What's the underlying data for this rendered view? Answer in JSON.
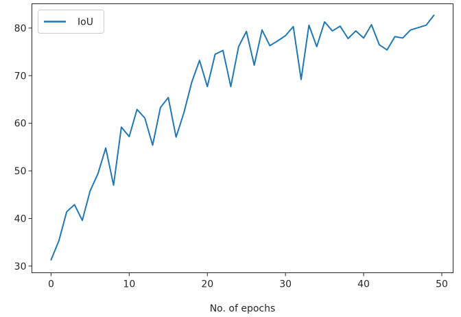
{
  "chart_data": {
    "type": "line",
    "title": "",
    "xlabel": "No. of epochs",
    "ylabel": "",
    "xlim": [
      -2.45,
      51.45
    ],
    "ylim": [
      28.6,
      85.1
    ],
    "xticks": [
      0,
      10,
      20,
      30,
      40,
      50
    ],
    "yticks": [
      30,
      40,
      50,
      60,
      70,
      80
    ],
    "grid": false,
    "legend_position": "upper-left",
    "series": [
      {
        "name": "IoU",
        "color": "#1f77b4",
        "x": [
          0,
          1,
          2,
          3,
          4,
          5,
          6,
          7,
          8,
          9,
          10,
          11,
          12,
          13,
          14,
          15,
          16,
          17,
          18,
          19,
          20,
          21,
          22,
          23,
          24,
          25,
          26,
          27,
          28,
          29,
          30,
          31,
          32,
          33,
          34,
          35,
          36,
          37,
          38,
          39,
          40,
          41,
          42,
          43,
          44,
          45,
          46,
          47,
          48,
          49
        ],
        "values": [
          31.3,
          35.3,
          41.4,
          42.9,
          39.6,
          45.8,
          49.4,
          54.8,
          47.0,
          59.2,
          57.2,
          62.9,
          61.1,
          55.4,
          63.3,
          65.4,
          57.1,
          62.2,
          68.6,
          73.2,
          67.7,
          74.5,
          75.3,
          67.7,
          76.1,
          79.3,
          72.2,
          79.6,
          76.3,
          77.3,
          78.4,
          80.3,
          69.2,
          80.6,
          76.1,
          81.3,
          79.4,
          80.4,
          77.8,
          79.4,
          77.9,
          80.7,
          76.5,
          75.4,
          78.2,
          77.9,
          79.6,
          80.1,
          80.6,
          82.7
        ]
      }
    ]
  }
}
